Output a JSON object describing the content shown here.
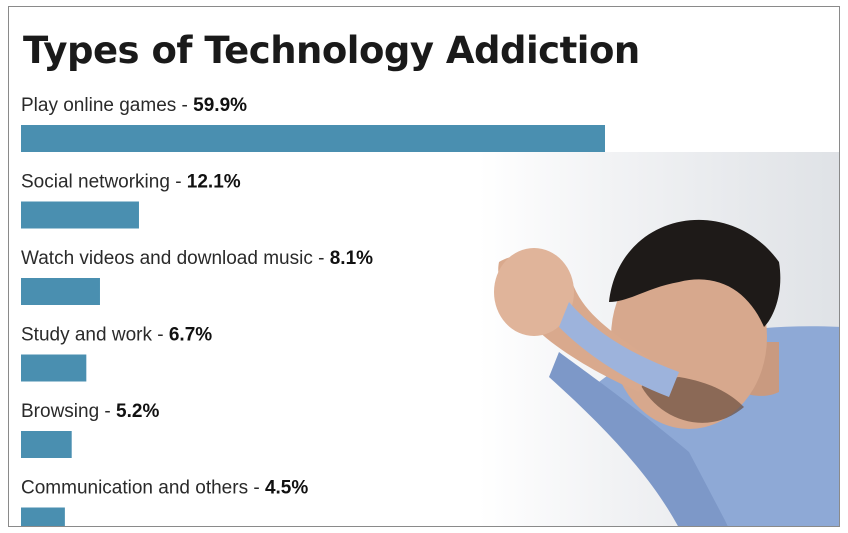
{
  "chart_data": {
    "type": "bar",
    "orientation": "horizontal",
    "title": "Types of Technology Addiction",
    "categories": [
      "Play online games",
      "Social networking",
      "Watch videos and download music",
      "Study and work",
      "Browsing",
      "Communication and others"
    ],
    "values": [
      59.9,
      12.1,
      8.1,
      6.7,
      5.2,
      4.5
    ],
    "value_labels": [
      "59.9%",
      "12.1%",
      "8.1%",
      "6.7%",
      "5.2%",
      "4.5%"
    ],
    "unit": "%",
    "bar_color": "#4a8fb0",
    "grid": false,
    "legend": "none"
  }
}
